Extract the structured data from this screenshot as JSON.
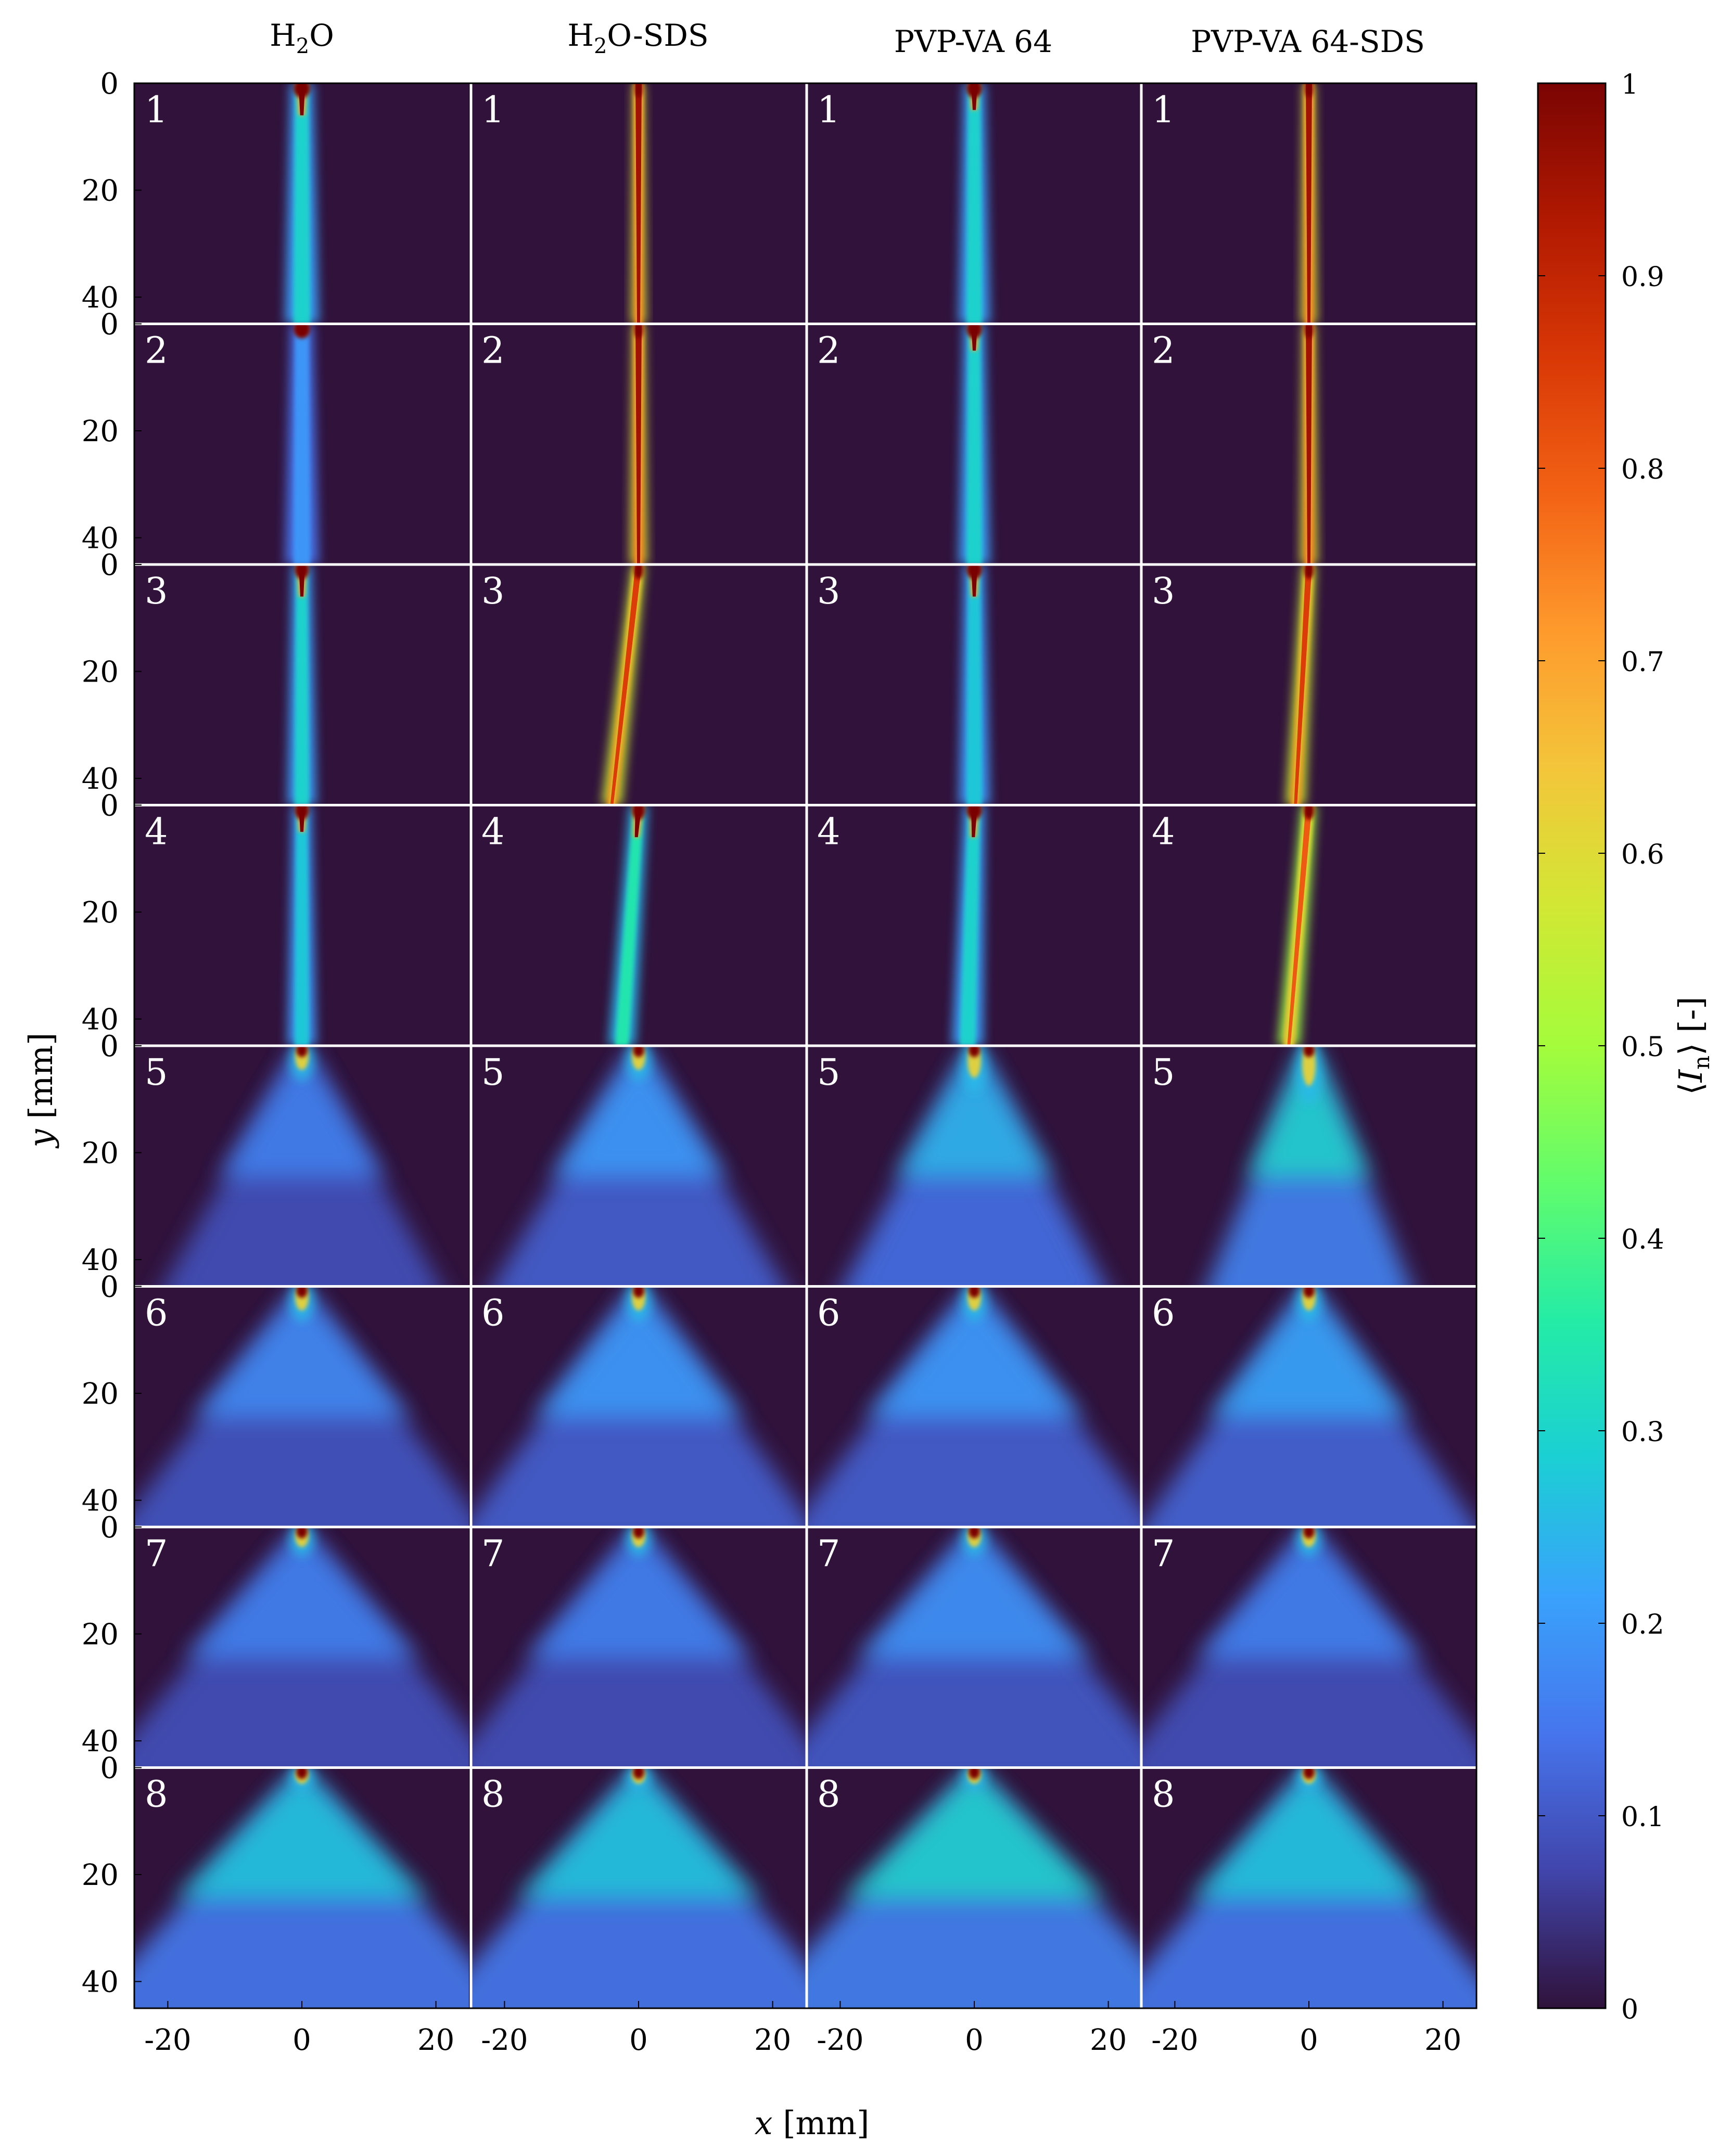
{
  "chart_data": {
    "type": "heatmap",
    "columns": [
      {
        "label_main": "H",
        "label_sub": "2",
        "label_rest": "O"
      },
      {
        "label_main": "H",
        "label_sub": "2",
        "label_rest": "O-SDS"
      },
      {
        "label_main": "PVP-VA 64",
        "label_sub": "",
        "label_rest": ""
      },
      {
        "label_main": "PVP-VA 64-SDS",
        "label_sub": "",
        "label_rest": ""
      }
    ],
    "rows": [
      "1",
      "2",
      "3",
      "4",
      "5",
      "6",
      "7",
      "8"
    ],
    "xlabel": {
      "var": "x",
      "unit": " [mm]"
    },
    "ylabel": {
      "var": "y",
      "unit": " [mm]"
    },
    "xticks": [
      "-20",
      "0",
      "20"
    ],
    "xtick_values": [
      -20,
      0,
      20
    ],
    "xlim": [
      -25,
      25
    ],
    "yticks": [
      "0",
      "20",
      "40"
    ],
    "ytick_values": [
      0,
      20,
      40
    ],
    "ylim": [
      0,
      45
    ],
    "colorbar": {
      "label": "⟨I_n⟩ [-]",
      "label_var": "I",
      "label_sub": "n",
      "label_unit": " [-]",
      "range": [
        0,
        1
      ],
      "ticks": [
        "0",
        "0.1",
        "0.2",
        "0.3",
        "0.4",
        "0.5",
        "0.6",
        "0.7",
        "0.8",
        "0.9",
        "1"
      ],
      "tick_values": [
        0,
        0.1,
        0.2,
        0.3,
        0.4,
        0.5,
        0.6,
        0.7,
        0.8,
        0.9,
        1
      ]
    },
    "colormap": "turbo",
    "colormap_stops": [
      "#30123b",
      "#4145ab",
      "#4675ed",
      "#39a2fc",
      "#1bcfd4",
      "#24eca6",
      "#61fc6c",
      "#a4fc3b",
      "#d1e834",
      "#f3c63a",
      "#fe9b2d",
      "#f36315",
      "#d93806",
      "#b11901",
      "#7a0403"
    ],
    "background_color": "#30123b",
    "panels": [
      [
        {
          "type": "jet",
          "width": 2.8,
          "intensity": 0.3,
          "core_len": 6,
          "core_level": 1.0,
          "spread": 0,
          "tilt": 0
        },
        {
          "type": "jet",
          "width": 2.8,
          "intensity": 0.2,
          "core_len": 2,
          "core_level": 1.0,
          "spread": 0,
          "tilt": 0
        },
        {
          "type": "jet",
          "width": 2.4,
          "intensity": 0.3,
          "core_len": 6,
          "core_level": 1.0,
          "spread": 0,
          "tilt": 0
        },
        {
          "type": "jet",
          "width": 2.4,
          "intensity": 0.28,
          "core_len": 5,
          "core_level": 1.0,
          "spread": 0,
          "tilt": 0
        },
        {
          "type": "spray",
          "width": 2.0,
          "intensity": 0.12,
          "core_len": 3,
          "core_level": 1.0,
          "spread": 0.6,
          "tilt": 0
        },
        {
          "type": "spray",
          "width": 2.0,
          "intensity": 0.13,
          "core_len": 3,
          "core_level": 1.0,
          "spread": 0.9,
          "tilt": 0
        },
        {
          "type": "spray",
          "width": 2.0,
          "intensity": 0.12,
          "core_len": 2.5,
          "core_level": 1.0,
          "spread": 1.0,
          "tilt": 0
        },
        {
          "type": "spray",
          "width": 2.0,
          "intensity": 0.2,
          "core_len": 2,
          "core_level": 1.0,
          "spread": 1.1,
          "tilt": 0
        }
      ],
      [
        {
          "type": "jet",
          "width": 1.2,
          "intensity": 0.85,
          "core_len": 45,
          "core_level": 0.95,
          "spread": 0,
          "tilt": 0
        },
        {
          "type": "jet",
          "width": 1.4,
          "intensity": 0.85,
          "core_len": 45,
          "core_level": 0.95,
          "spread": 0,
          "tilt": 0
        },
        {
          "type": "jet",
          "width": 1.6,
          "intensity": 0.8,
          "core_len": 45,
          "core_level": 0.85,
          "spread": 0,
          "tilt": -4
        },
        {
          "type": "jet",
          "width": 2.2,
          "intensity": 0.35,
          "core_len": 6,
          "core_level": 1.0,
          "spread": 0,
          "tilt": -2.5
        },
        {
          "type": "spray",
          "width": 2.0,
          "intensity": 0.15,
          "core_len": 3,
          "core_level": 1.0,
          "spread": 0.65,
          "tilt": 0
        },
        {
          "type": "spray",
          "width": 2.0,
          "intensity": 0.15,
          "core_len": 3,
          "core_level": 1.0,
          "spread": 0.85,
          "tilt": 0
        },
        {
          "type": "spray",
          "width": 2.0,
          "intensity": 0.12,
          "core_len": 2.5,
          "core_level": 1.0,
          "spread": 0.95,
          "tilt": 0
        },
        {
          "type": "spray",
          "width": 2.0,
          "intensity": 0.2,
          "core_len": 2,
          "core_level": 1.0,
          "spread": 1.05,
          "tilt": 0
        }
      ],
      [
        {
          "type": "jet",
          "width": 2.6,
          "intensity": 0.3,
          "core_len": 5,
          "core_level": 1.0,
          "spread": 0,
          "tilt": 0
        },
        {
          "type": "jet",
          "width": 2.6,
          "intensity": 0.3,
          "core_len": 5,
          "core_level": 1.0,
          "spread": 0,
          "tilt": 0
        },
        {
          "type": "jet",
          "width": 2.6,
          "intensity": 0.28,
          "core_len": 6,
          "core_level": 1.0,
          "spread": 0,
          "tilt": 0
        },
        {
          "type": "jet",
          "width": 2.6,
          "intensity": 0.3,
          "core_len": 6,
          "core_level": 1.0,
          "spread": 0,
          "tilt": -1
        },
        {
          "type": "spray",
          "width": 2.0,
          "intensity": 0.18,
          "core_len": 4,
          "core_level": 1.0,
          "spread": 0.55,
          "tilt": 0
        },
        {
          "type": "spray",
          "width": 2.0,
          "intensity": 0.15,
          "core_len": 3,
          "core_level": 1.0,
          "spread": 0.9,
          "tilt": 0
        },
        {
          "type": "spray",
          "width": 2.0,
          "intensity": 0.14,
          "core_len": 2.5,
          "core_level": 1.0,
          "spread": 1.0,
          "tilt": 0
        },
        {
          "type": "spray",
          "width": 2.0,
          "intensity": 0.22,
          "core_len": 2,
          "core_level": 1.0,
          "spread": 1.15,
          "tilt": 0
        }
      ],
      [
        {
          "type": "jet",
          "width": 1.3,
          "intensity": 0.85,
          "core_len": 45,
          "core_level": 0.95,
          "spread": 0,
          "tilt": 0
        },
        {
          "type": "jet",
          "width": 1.4,
          "intensity": 0.85,
          "core_len": 45,
          "core_level": 0.95,
          "spread": 0,
          "tilt": 0
        },
        {
          "type": "jet",
          "width": 1.6,
          "intensity": 0.8,
          "core_len": 45,
          "core_level": 0.85,
          "spread": 0,
          "tilt": -2
        },
        {
          "type": "jet",
          "width": 1.8,
          "intensity": 0.7,
          "core_len": 45,
          "core_level": 0.8,
          "spread": 0,
          "tilt": -3
        },
        {
          "type": "spray",
          "width": 2.0,
          "intensity": 0.22,
          "core_len": 5,
          "core_level": 1.0,
          "spread": 0.35,
          "tilt": 0
        },
        {
          "type": "spray",
          "width": 2.0,
          "intensity": 0.16,
          "core_len": 3,
          "core_level": 1.0,
          "spread": 0.8,
          "tilt": 0
        },
        {
          "type": "spray",
          "width": 2.0,
          "intensity": 0.12,
          "core_len": 2.5,
          "core_level": 1.0,
          "spread": 0.95,
          "tilt": 0
        },
        {
          "type": "spray",
          "width": 2.0,
          "intensity": 0.2,
          "core_len": 2,
          "core_level": 1.0,
          "spread": 1.0,
          "tilt": 0
        }
      ]
    ]
  }
}
